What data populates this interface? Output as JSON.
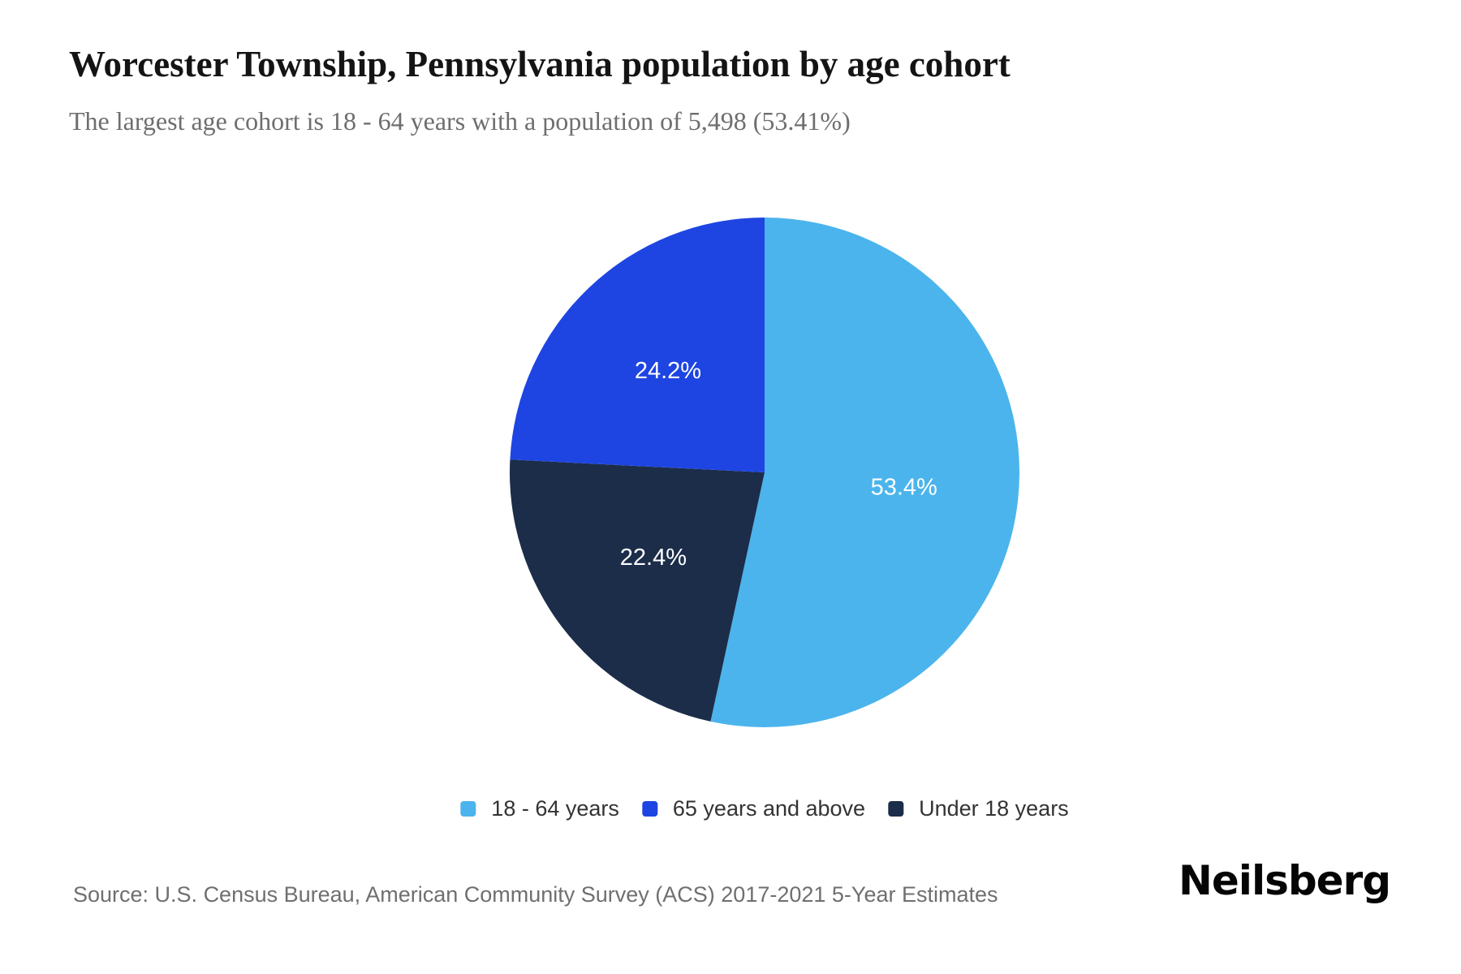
{
  "header": {
    "title": "Worcester Township, Pennsylvania population by age cohort",
    "subtitle": "The largest age cohort is 18 - 64 years with a population of 5,498 (53.41%)"
  },
  "chart_data": {
    "type": "pie",
    "title": "Worcester Township, Pennsylvania population by age cohort",
    "start_angle": "12 o'clock, clockwise",
    "largest_cohort": {
      "label": "18 - 64 years",
      "population": 5498,
      "percent": 53.41
    },
    "slices": [
      {
        "label": "18 - 64 years",
        "percent": 53.4,
        "percent_label": "53.4%",
        "color": "#4BB4EC"
      },
      {
        "label": "Under 18 years",
        "percent": 22.4,
        "percent_label": "22.4%",
        "color": "#1B2D49"
      },
      {
        "label": "65 years and above",
        "percent": 24.2,
        "percent_label": "24.2%",
        "color": "#1E45E2"
      }
    ],
    "legend": [
      {
        "label": "18 - 64 years",
        "color": "#4BB4EC"
      },
      {
        "label": "65 years and above",
        "color": "#1E45E2"
      },
      {
        "label": "Under 18 years",
        "color": "#1B2D49"
      }
    ],
    "legend_position": "bottom"
  },
  "footer": {
    "source": "Source: U.S. Census Bureau, American Community Survey (ACS) 2017-2021 5-Year Estimates",
    "brand": "Neilsberg"
  }
}
